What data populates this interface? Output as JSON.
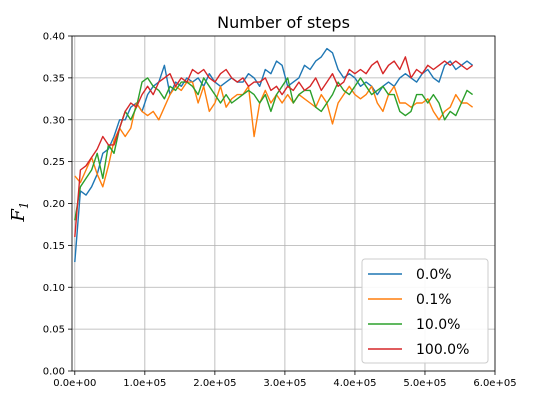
{
  "chart_data": {
    "type": "line",
    "title": "Number of steps",
    "xlabel": "",
    "ylabel": "F",
    "ylabel_subscript": "1",
    "xlim": [
      -4000,
      600000
    ],
    "ylim": [
      0.0,
      0.4
    ],
    "x_ticks": [
      {
        "value": 0,
        "label": "0.0e+00"
      },
      {
        "value": 100000,
        "label": "1.0e+05"
      },
      {
        "value": 200000,
        "label": "2.0e+05"
      },
      {
        "value": 300000,
        "label": "3.0e+05"
      },
      {
        "value": 400000,
        "label": "4.0e+05"
      },
      {
        "value": 500000,
        "label": "5.0e+05"
      },
      {
        "value": 600000,
        "label": "6.0e+05"
      }
    ],
    "y_ticks": [
      {
        "value": 0.0,
        "label": "0.00"
      },
      {
        "value": 0.05,
        "label": "0.05"
      },
      {
        "value": 0.1,
        "label": "0.10"
      },
      {
        "value": 0.15,
        "label": "0.15"
      },
      {
        "value": 0.2,
        "label": "0.20"
      },
      {
        "value": 0.25,
        "label": "0.25"
      },
      {
        "value": 0.3,
        "label": "0.30"
      },
      {
        "value": 0.35,
        "label": "0.35"
      },
      {
        "value": 0.4,
        "label": "0.40"
      }
    ],
    "grid": true,
    "legend_position": "lower-right",
    "x": [
      0,
      8000,
      16000,
      24000,
      32000,
      40000,
      48000,
      56000,
      64000,
      72000,
      80000,
      88000,
      96000,
      104000,
      112000,
      120000,
      128000,
      136000,
      144000,
      152000,
      160000,
      168000,
      176000,
      184000,
      192000,
      200000,
      208000,
      216000,
      224000,
      232000,
      240000,
      248000,
      256000,
      264000,
      272000,
      280000,
      288000,
      296000,
      304000,
      312000,
      320000,
      328000,
      336000,
      344000,
      352000,
      360000,
      368000,
      376000,
      384000,
      392000,
      400000,
      408000,
      416000,
      424000,
      432000,
      440000,
      448000,
      456000,
      464000,
      472000,
      480000,
      488000,
      496000,
      504000,
      512000,
      520000,
      528000,
      536000,
      544000,
      552000,
      560000,
      568000
    ],
    "series": [
      {
        "name": "0.0%",
        "color": "#1f77b4",
        "values": [
          0.13,
          0.215,
          0.21,
          0.22,
          0.235,
          0.26,
          0.265,
          0.28,
          0.3,
          0.3,
          0.315,
          0.32,
          0.31,
          0.33,
          0.34,
          0.345,
          0.365,
          0.33,
          0.345,
          0.34,
          0.35,
          0.345,
          0.35,
          0.34,
          0.355,
          0.345,
          0.34,
          0.345,
          0.35,
          0.345,
          0.345,
          0.355,
          0.35,
          0.34,
          0.36,
          0.355,
          0.37,
          0.365,
          0.34,
          0.345,
          0.35,
          0.365,
          0.36,
          0.37,
          0.375,
          0.385,
          0.38,
          0.36,
          0.35,
          0.355,
          0.35,
          0.34,
          0.345,
          0.34,
          0.33,
          0.34,
          0.345,
          0.34,
          0.35,
          0.355,
          0.35,
          0.345,
          0.355,
          0.36,
          0.35,
          0.345,
          0.365,
          0.37,
          0.36,
          0.365,
          0.37,
          0.365
        ]
      },
      {
        "name": "0.1%",
        "color": "#ff7f0e",
        "values": [
          0.233,
          0.225,
          0.24,
          0.255,
          0.235,
          0.22,
          0.245,
          0.275,
          0.29,
          0.28,
          0.29,
          0.32,
          0.31,
          0.305,
          0.31,
          0.3,
          0.315,
          0.33,
          0.34,
          0.335,
          0.345,
          0.345,
          0.32,
          0.34,
          0.31,
          0.32,
          0.34,
          0.315,
          0.325,
          0.33,
          0.33,
          0.34,
          0.28,
          0.32,
          0.335,
          0.32,
          0.33,
          0.32,
          0.33,
          0.32,
          0.33,
          0.325,
          0.32,
          0.315,
          0.33,
          0.32,
          0.295,
          0.32,
          0.33,
          0.34,
          0.33,
          0.325,
          0.33,
          0.34,
          0.32,
          0.31,
          0.33,
          0.34,
          0.32,
          0.32,
          0.315,
          0.32,
          0.32,
          0.325,
          0.31,
          0.3,
          0.31,
          0.315,
          0.33,
          0.32,
          0.32,
          0.315
        ]
      },
      {
        "name": "10.0%",
        "color": "#2ca02c",
        "values": [
          0.18,
          0.22,
          0.23,
          0.24,
          0.26,
          0.23,
          0.27,
          0.26,
          0.29,
          0.31,
          0.3,
          0.315,
          0.345,
          0.35,
          0.34,
          0.335,
          0.325,
          0.34,
          0.335,
          0.345,
          0.345,
          0.34,
          0.33,
          0.35,
          0.34,
          0.33,
          0.32,
          0.33,
          0.32,
          0.325,
          0.33,
          0.335,
          0.33,
          0.32,
          0.33,
          0.31,
          0.33,
          0.34,
          0.35,
          0.32,
          0.33,
          0.335,
          0.335,
          0.315,
          0.31,
          0.32,
          0.33,
          0.345,
          0.335,
          0.33,
          0.34,
          0.35,
          0.34,
          0.33,
          0.335,
          0.34,
          0.33,
          0.33,
          0.31,
          0.305,
          0.31,
          0.33,
          0.33,
          0.32,
          0.33,
          0.32,
          0.3,
          0.31,
          0.305,
          0.32,
          0.335,
          0.33
        ]
      },
      {
        "name": "100.0%",
        "color": "#d62728",
        "values": [
          0.16,
          0.24,
          0.245,
          0.255,
          0.265,
          0.28,
          0.27,
          0.27,
          0.29,
          0.31,
          0.32,
          0.315,
          0.33,
          0.34,
          0.33,
          0.345,
          0.35,
          0.355,
          0.34,
          0.35,
          0.345,
          0.36,
          0.355,
          0.36,
          0.35,
          0.345,
          0.355,
          0.36,
          0.35,
          0.345,
          0.35,
          0.34,
          0.345,
          0.345,
          0.35,
          0.335,
          0.34,
          0.33,
          0.34,
          0.335,
          0.345,
          0.335,
          0.34,
          0.35,
          0.335,
          0.345,
          0.355,
          0.34,
          0.345,
          0.36,
          0.355,
          0.36,
          0.355,
          0.365,
          0.37,
          0.355,
          0.365,
          0.37,
          0.36,
          0.375,
          0.35,
          0.36,
          0.355,
          0.365,
          0.36,
          0.365,
          0.37,
          0.365,
          0.37,
          0.365,
          0.36,
          0.365
        ]
      }
    ]
  }
}
